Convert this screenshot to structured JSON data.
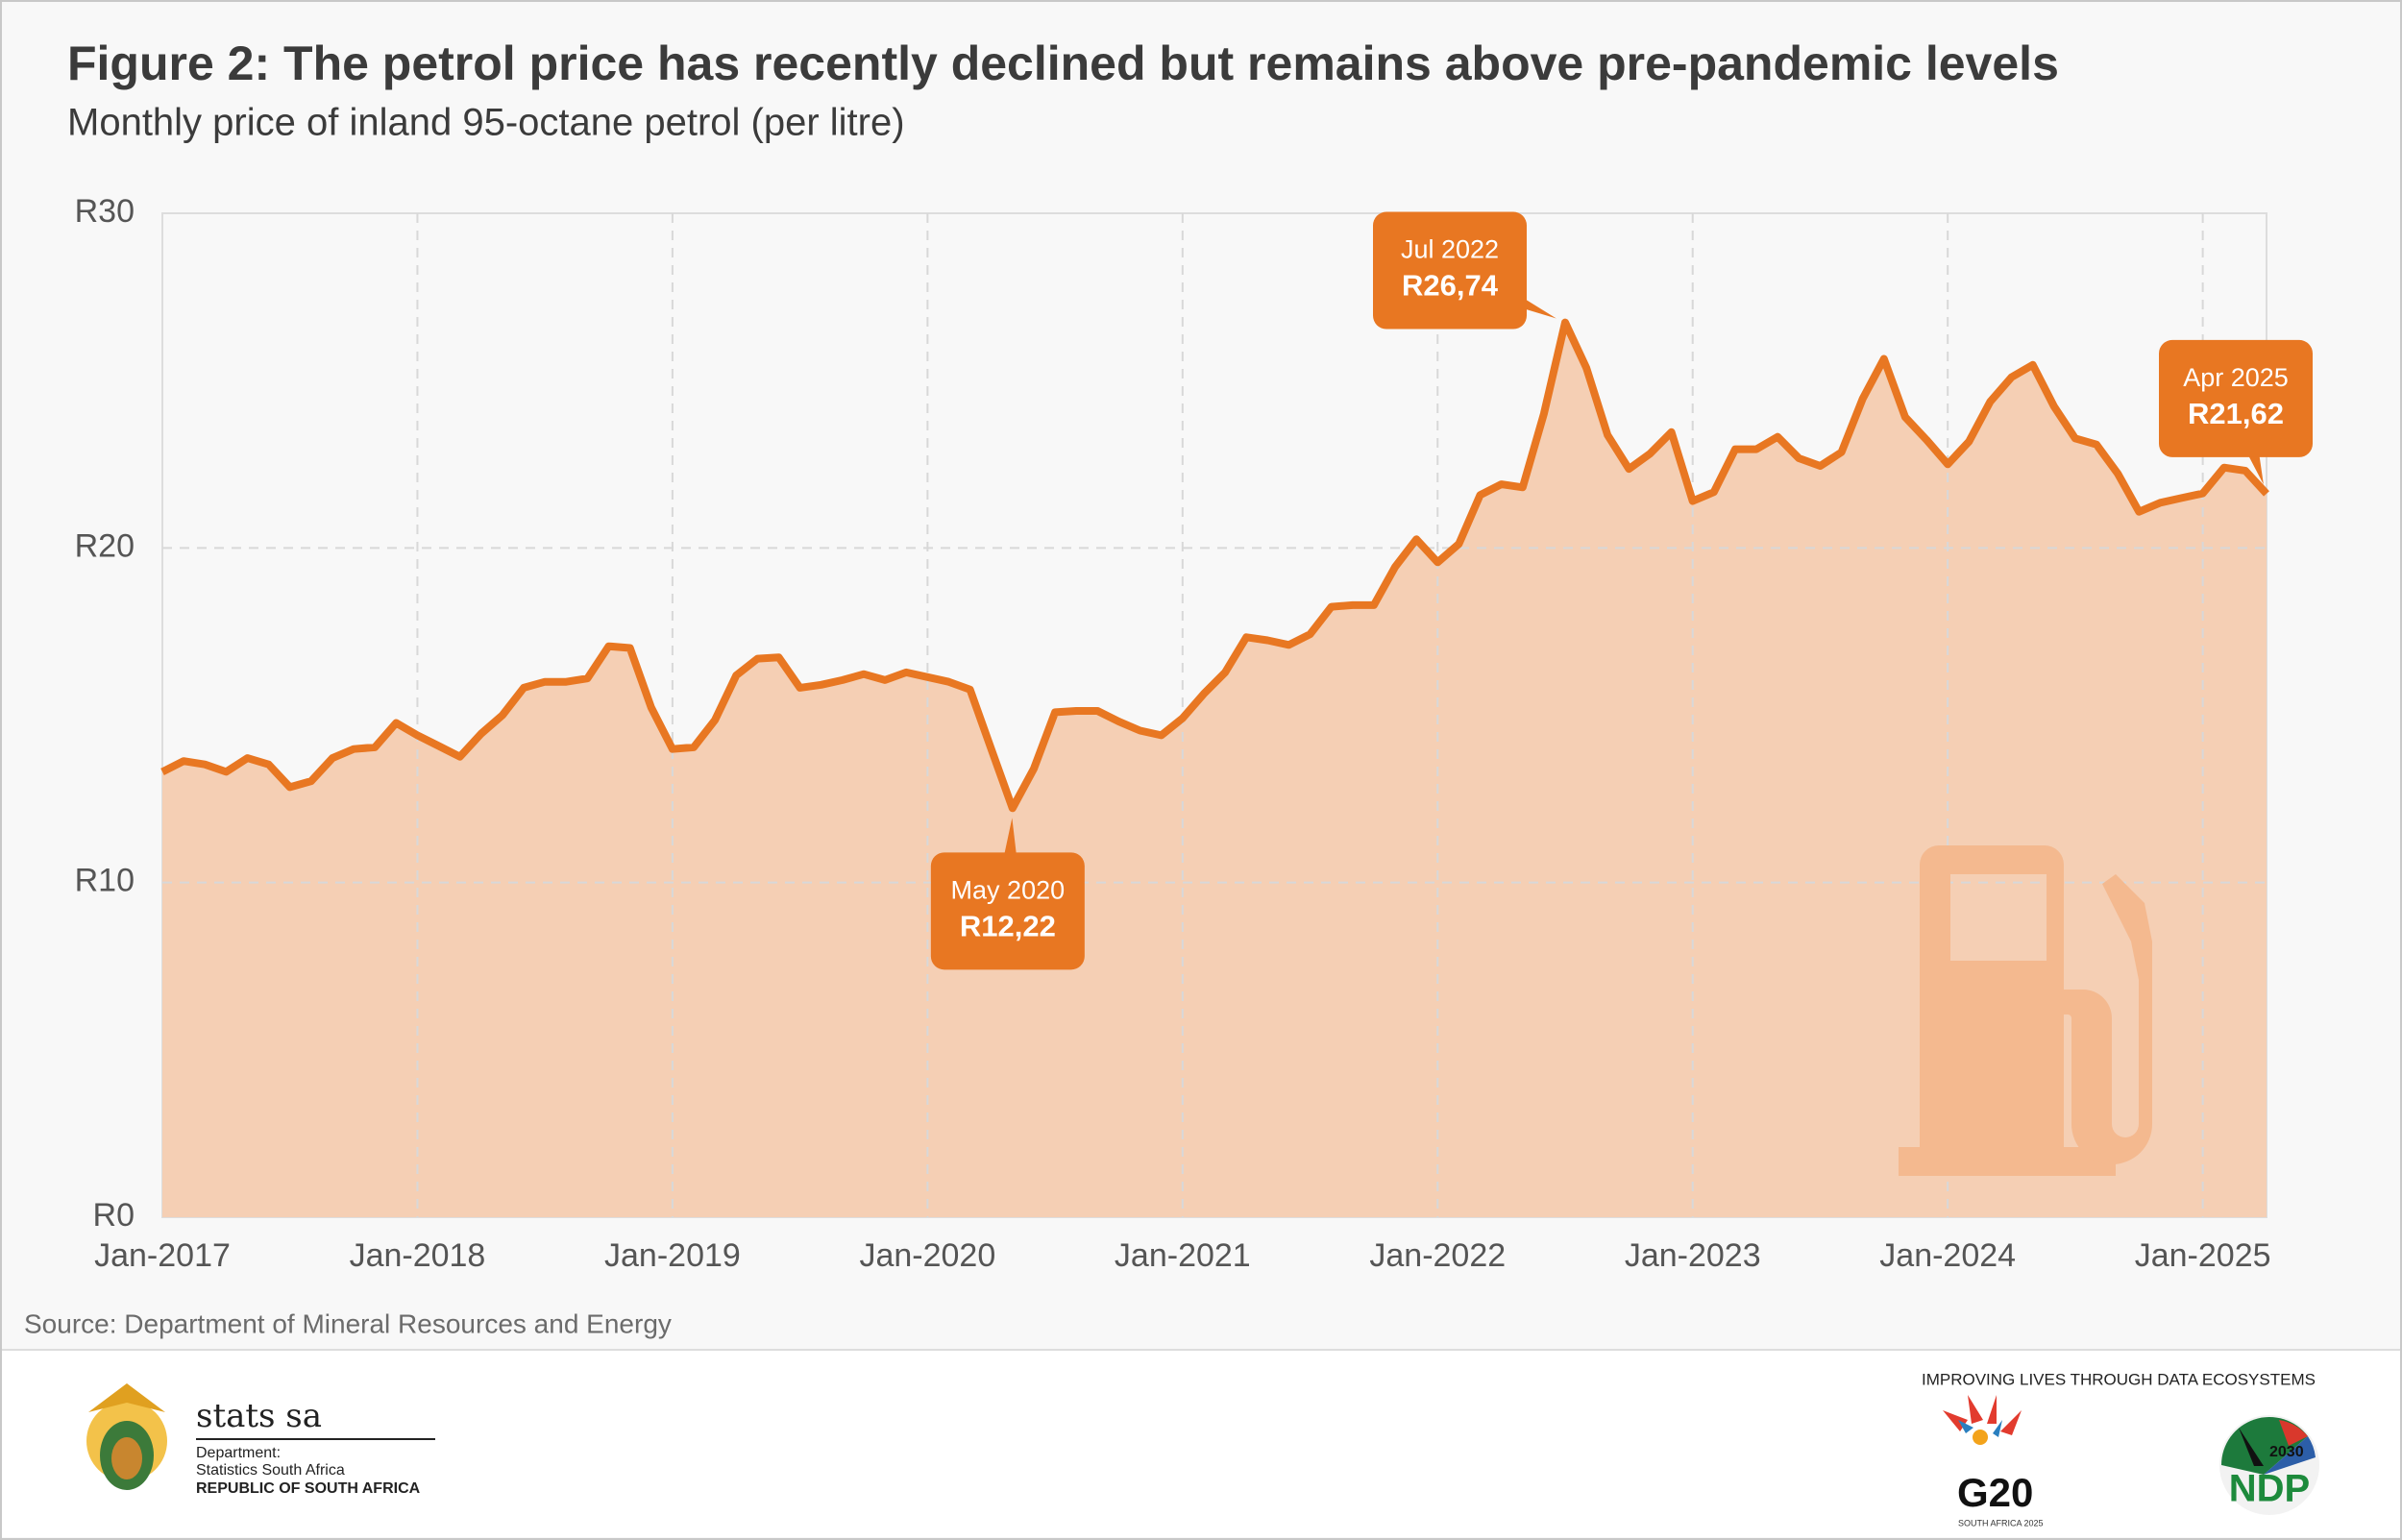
{
  "chart_data": {
    "type": "area-line",
    "title": "Figure 2: The petrol price has recently declined but remains above pre-pandemic levels",
    "subtitle": "Monthly price of inland 95-octane petrol (per litre)",
    "source": "Source: Department of Mineral Resources and Energy",
    "color": "#e87722",
    "fill_color": "#f5cfb4",
    "grid": true,
    "x": [
      "2017-01",
      "2017-02",
      "2017-03",
      "2017-04",
      "2017-05",
      "2017-06",
      "2017-07",
      "2017-08",
      "2017-09",
      "2017-10",
      "2017-11",
      "2017-12",
      "2018-01",
      "2018-02",
      "2018-03",
      "2018-04",
      "2018-05",
      "2018-06",
      "2018-07",
      "2018-08",
      "2018-09",
      "2018-10",
      "2018-11",
      "2018-12",
      "2019-01",
      "2019-02",
      "2019-03",
      "2019-04",
      "2019-05",
      "2019-06",
      "2019-07",
      "2019-08",
      "2019-09",
      "2019-10",
      "2019-11",
      "2019-12",
      "2020-01",
      "2020-02",
      "2020-03",
      "2020-04",
      "2020-05",
      "2020-06",
      "2020-07",
      "2020-08",
      "2020-09",
      "2020-10",
      "2020-11",
      "2020-12",
      "2021-01",
      "2021-02",
      "2021-03",
      "2021-04",
      "2021-05",
      "2021-06",
      "2021-07",
      "2021-08",
      "2021-09",
      "2021-10",
      "2021-11",
      "2021-12",
      "2022-01",
      "2022-02",
      "2022-03",
      "2022-04",
      "2022-05",
      "2022-06",
      "2022-07",
      "2022-08",
      "2022-09",
      "2022-10",
      "2022-11",
      "2022-12",
      "2023-01",
      "2023-02",
      "2023-03",
      "2023-04",
      "2023-05",
      "2023-06",
      "2023-07",
      "2023-08",
      "2023-09",
      "2023-10",
      "2023-11",
      "2023-12",
      "2024-01",
      "2024-02",
      "2024-03",
      "2024-04",
      "2024-05",
      "2024-06",
      "2024-07",
      "2024-08",
      "2024-09",
      "2024-10",
      "2024-11",
      "2024-12",
      "2025-01",
      "2025-02",
      "2025-03",
      "2025-04"
    ],
    "values": [
      13.31,
      13.63,
      13.53,
      13.31,
      13.72,
      13.53,
      12.85,
      13.03,
      13.72,
      13.99,
      14.04,
      14.77,
      14.4,
      14.08,
      13.76,
      14.45,
      15.0,
      15.82,
      16.0,
      16.0,
      16.1,
      17.06,
      17.01,
      15.23,
      13.99,
      14.04,
      14.86,
      16.19,
      16.69,
      16.73,
      15.82,
      15.91,
      16.05,
      16.23,
      16.05,
      16.28,
      16.14,
      16.0,
      15.77,
      13.99,
      12.22,
      13.4,
      15.09,
      15.13,
      15.13,
      14.81,
      14.54,
      14.4,
      14.91,
      15.64,
      16.28,
      17.33,
      17.24,
      17.1,
      17.42,
      18.24,
      18.29,
      18.29,
      19.43,
      20.26,
      19.57,
      20.12,
      21.58,
      21.9,
      21.81,
      24.01,
      26.74,
      25.38,
      23.37,
      22.36,
      22.82,
      23.46,
      21.4,
      21.67,
      22.95,
      22.95,
      23.32,
      22.68,
      22.45,
      22.86,
      24.46,
      25.65,
      23.91,
      23.23,
      22.5,
      23.18,
      24.37,
      25.1,
      25.47,
      24.23,
      23.27,
      23.09,
      22.22,
      21.08,
      21.35,
      21.49,
      21.63,
      22.4,
      22.31,
      21.62
    ],
    "xlim": [
      "2017-01",
      "2025-04"
    ],
    "xticks": [
      {
        "value": "2017-01",
        "label": "Jan-2017"
      },
      {
        "value": "2018-01",
        "label": "Jan-2018"
      },
      {
        "value": "2019-01",
        "label": "Jan-2019"
      },
      {
        "value": "2020-01",
        "label": "Jan-2020"
      },
      {
        "value": "2021-01",
        "label": "Jan-2021"
      },
      {
        "value": "2022-01",
        "label": "Jan-2022"
      },
      {
        "value": "2023-01",
        "label": "Jan-2023"
      },
      {
        "value": "2024-01",
        "label": "Jan-2024"
      },
      {
        "value": "2025-01",
        "label": "Jan-2025"
      }
    ],
    "ylim": [
      0,
      30
    ],
    "yticks": [
      {
        "value": 0,
        "label": "R0"
      },
      {
        "value": 10,
        "label": "R10"
      },
      {
        "value": 20,
        "label": "R20"
      },
      {
        "value": 30,
        "label": "R30"
      }
    ],
    "annotations": [
      {
        "x": "2022-07",
        "label": "Jul 2022",
        "value": 26.74,
        "value_label": "R26,74"
      },
      {
        "x": "2020-05",
        "label": "May 2020",
        "value": 12.22,
        "value_label": "R12,22"
      },
      {
        "x": "2025-04",
        "label": "Apr 2025",
        "value": 21.62,
        "value_label": "R21,62"
      }
    ]
  },
  "footer": {
    "brand": "stats sa",
    "department": "Department:",
    "agency": "Statistics South Africa",
    "country": "REPUBLIC OF SOUTH AFRICA",
    "slogan": "IMPROVING LIVES THROUGH DATA ECOSYSTEMS",
    "g20": "G20",
    "g20_sub": "SOUTH AFRICA 2025",
    "ndp": "NDP",
    "ndp_year": "2030"
  }
}
